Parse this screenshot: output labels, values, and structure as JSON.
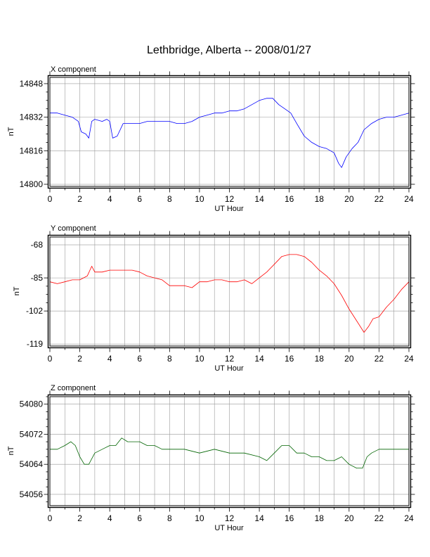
{
  "title": "Lethbridge, Alberta -- 2008/01/27",
  "colors": {
    "x": "#0000ff",
    "y": "#ff0000",
    "z": "#006400",
    "grid": "#9a9a9a",
    "frame": "#000000"
  },
  "chart_data": [
    {
      "type": "line",
      "panel_label": "X component",
      "xlabel": "UT Hour",
      "ylabel": "nT",
      "xlim": [
        0,
        24
      ],
      "ylim": [
        14799,
        14851
      ],
      "xticks": [
        0,
        2,
        4,
        6,
        8,
        10,
        12,
        14,
        16,
        18,
        20,
        22,
        24
      ],
      "yticks": [
        14800,
        14816,
        14832,
        14848
      ],
      "grid": true,
      "series": [
        {
          "color": "#0000ff",
          "x": [
            0,
            0.5,
            1,
            1.5,
            1.9,
            2.1,
            2.4,
            2.6,
            2.8,
            3,
            3.5,
            3.8,
            4,
            4.2,
            4.5,
            4.9,
            5.1,
            5.5,
            6,
            6.5,
            7,
            7.5,
            8,
            8.5,
            9,
            9.5,
            10,
            10.5,
            11,
            11.5,
            12,
            12.5,
            13,
            13.5,
            14,
            14.5,
            14.9,
            15.3,
            15.7,
            16.1,
            16.5,
            17,
            17.5,
            18,
            18.5,
            19,
            19.3,
            19.5,
            19.8,
            20.2,
            20.6,
            21,
            21.5,
            22,
            22.5,
            23,
            23.5,
            24
          ],
          "values": [
            14834,
            14834,
            14833,
            14832,
            14830,
            14825,
            14824,
            14822,
            14830,
            14831,
            14830,
            14831,
            14830,
            14822,
            14823,
            14829,
            14829,
            14829,
            14829,
            14830,
            14830,
            14830,
            14830,
            14829,
            14829,
            14830,
            14832,
            14833,
            14834,
            14834,
            14835,
            14835,
            14836,
            14838,
            14840,
            14841,
            14841,
            14838,
            14836,
            14834,
            14829,
            14823,
            14820,
            14818,
            14817,
            14815,
            14810,
            14808,
            14813,
            14817,
            14820,
            14826,
            14829,
            14831,
            14832,
            14832,
            14833,
            14834
          ]
        }
      ]
    },
    {
      "type": "line",
      "panel_label": "Y component",
      "xlabel": "UT Hour",
      "ylabel": "nT",
      "xlim": [
        0,
        24
      ],
      "ylim": [
        -120,
        -64
      ],
      "xticks": [
        0,
        2,
        4,
        6,
        8,
        10,
        12,
        14,
        16,
        18,
        20,
        22,
        24
      ],
      "yticks": [
        -68,
        -85,
        -102,
        -119
      ],
      "grid": true,
      "series": [
        {
          "color": "#ff0000",
          "x": [
            0,
            0.5,
            1,
            1.5,
            2,
            2.5,
            2.8,
            3,
            3.5,
            4,
            4.5,
            5,
            5.5,
            6,
            6.5,
            7,
            7.5,
            8,
            8.5,
            9,
            9.5,
            10,
            10.5,
            11,
            11.5,
            12,
            12.5,
            13,
            13.5,
            14,
            14.5,
            15,
            15.5,
            16,
            16.5,
            17,
            17.5,
            18,
            18.5,
            19,
            19.5,
            20,
            20.5,
            21,
            21.3,
            21.6,
            22,
            22.5,
            23,
            23.5,
            24
          ],
          "values": [
            -87,
            -88,
            -87,
            -86,
            -86,
            -84,
            -79,
            -82,
            -82,
            -81,
            -81,
            -81,
            -81,
            -82,
            -84,
            -85,
            -86,
            -89,
            -89,
            -89,
            -90,
            -87,
            -87,
            -86,
            -86,
            -87,
            -87,
            -86,
            -88,
            -85,
            -82,
            -78,
            -74,
            -73,
            -73,
            -74,
            -77,
            -81,
            -84,
            -88,
            -94,
            -101,
            -107,
            -113,
            -110,
            -106,
            -105,
            -100,
            -96,
            -91,
            -87
          ]
        }
      ]
    },
    {
      "type": "line",
      "panel_label": "Z component",
      "xlabel": "UT Hour",
      "ylabel": "nT",
      "xlim": [
        0,
        24
      ],
      "ylim": [
        54053,
        54082
      ],
      "xticks": [
        0,
        2,
        4,
        6,
        8,
        10,
        12,
        14,
        16,
        18,
        20,
        22,
        24
      ],
      "yticks": [
        54056,
        54064,
        54072,
        54080
      ],
      "grid": true,
      "series": [
        {
          "color": "#006400",
          "x": [
            0,
            0.5,
            1,
            1.4,
            1.7,
            2,
            2.3,
            2.6,
            3,
            3.5,
            4,
            4.4,
            4.8,
            5.2,
            5.6,
            6,
            6.5,
            7,
            7.5,
            8,
            9,
            10,
            11,
            12,
            13,
            14,
            14.5,
            15,
            15.5,
            16,
            16.5,
            17,
            17.5,
            18,
            18.5,
            19,
            19.5,
            20,
            20.5,
            20.9,
            21.2,
            21.5,
            22,
            22.5,
            23,
            23.5,
            24
          ],
          "values": [
            54068,
            54068,
            54069,
            54070,
            54069,
            54066,
            54064,
            54064,
            54067,
            54068,
            54069,
            54069,
            54071,
            54070,
            54070,
            54070,
            54069,
            54069,
            54068,
            54068,
            54068,
            54067,
            54068,
            54067,
            54067,
            54066,
            54065,
            54067,
            54069,
            54069,
            54067,
            54067,
            54066,
            54066,
            54065,
            54065,
            54066,
            54064,
            54063,
            54063,
            54066,
            54067,
            54068,
            54068,
            54068,
            54068,
            54068
          ]
        }
      ]
    }
  ]
}
